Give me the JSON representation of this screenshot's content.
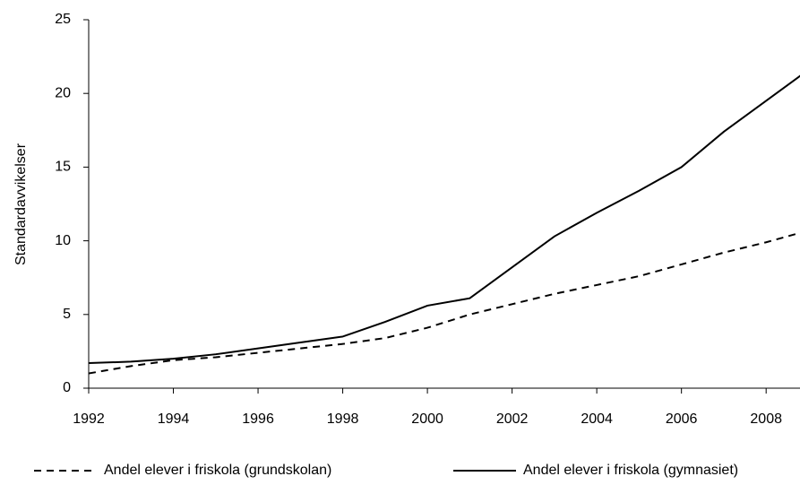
{
  "chart_data": {
    "type": "line",
    "ylabel": "Standardavvikelser",
    "x": [
      1992,
      1993,
      1994,
      1995,
      1996,
      1997,
      1998,
      1999,
      2000,
      2001,
      2002,
      2003,
      2004,
      2005,
      2006,
      2007,
      2008,
      2009
    ],
    "series": [
      {
        "name": "Andel elever i friskola (grundskolan)",
        "color": "#000000",
        "dash": true,
        "values": [
          1.0,
          1.5,
          1.9,
          2.1,
          2.4,
          2.7,
          3.0,
          3.4,
          4.1,
          5.0,
          5.7,
          6.4,
          7.0,
          7.6,
          8.4,
          9.2,
          9.9,
          10.7
        ]
      },
      {
        "name": "Andel elever i friskola (gymnasiet)",
        "color": "#000000",
        "dash": false,
        "values": [
          1.7,
          1.8,
          2.0,
          2.3,
          2.7,
          3.1,
          3.5,
          4.5,
          5.6,
          6.1,
          8.2,
          10.3,
          11.9,
          13.4,
          15.0,
          17.4,
          19.5,
          21.6
        ]
      }
    ],
    "xlim": [
      1992,
      2008.8
    ],
    "xticks": [
      1992,
      1994,
      1996,
      1998,
      2000,
      2002,
      2004,
      2006,
      2008
    ],
    "ylim": [
      0,
      25
    ],
    "yticks": [
      0,
      5,
      10,
      15,
      20,
      25
    ],
    "legend": "bottom"
  }
}
